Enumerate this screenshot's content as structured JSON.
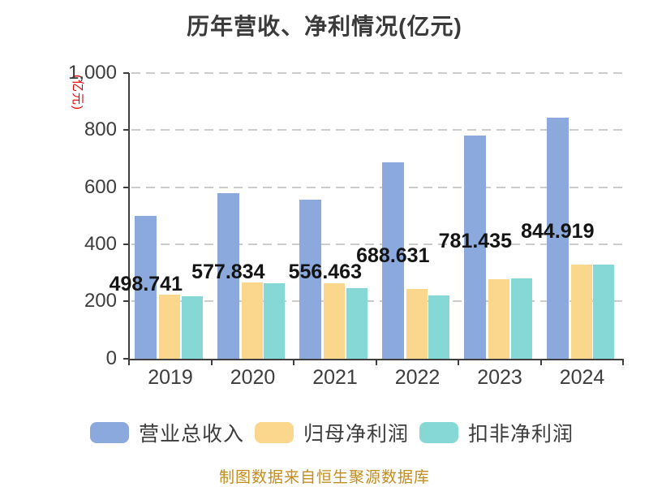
{
  "title": "历年营收、净利情况(亿元)",
  "y_axis": {
    "unit_label": "(亿元)",
    "unit_color": "#e60000",
    "tick_labels": [
      "0",
      "200",
      "400",
      "600",
      "800",
      "1,000"
    ],
    "tick_values": [
      0,
      200,
      400,
      600,
      800,
      1000
    ]
  },
  "footer": {
    "text": "制图数据来自恒生聚源数据库",
    "color": "#c28d1d"
  },
  "chart_data": {
    "type": "bar",
    "title": "历年营收、净利情况(亿元)",
    "categories": [
      "2019",
      "2020",
      "2021",
      "2022",
      "2023",
      "2024"
    ],
    "series": [
      {
        "name": "营业总收入",
        "color": "#8BA9DC",
        "values": [
          498.741,
          577.834,
          556.463,
          688.631,
          781.435,
          844.919
        ],
        "data_labels": [
          "498.741",
          "577.834",
          "556.463",
          "688.631",
          "781.435",
          "844.919"
        ]
      },
      {
        "name": "归母净利润",
        "color": "#FBD78E",
        "values": [
          223,
          266,
          264,
          244,
          278,
          330
        ]
      },
      {
        "name": "扣非净利润",
        "color": "#85D8D5",
        "values": [
          217,
          264,
          247,
          220,
          280,
          328
        ]
      }
    ],
    "ylim": [
      0,
      1000
    ],
    "ylabel": "(亿元)",
    "grid": "horizontal-dashed",
    "legend_position": "bottom",
    "value_labels_on_series": "营业总收入"
  }
}
